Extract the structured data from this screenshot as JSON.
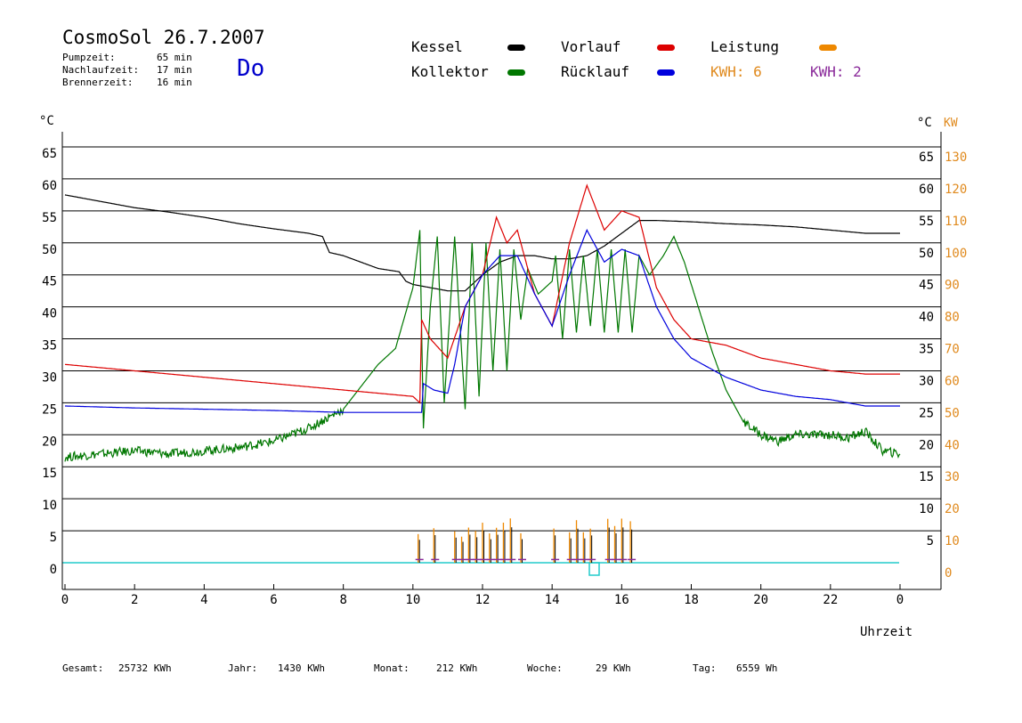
{
  "header": {
    "title": "CosmoSol 26.7.2007",
    "day": "Do",
    "stats": [
      {
        "label": "Pumpzeit:",
        "value": "65 min"
      },
      {
        "label": "Nachlaufzeit:",
        "value": "17 min"
      },
      {
        "label": "Brennerzeit:",
        "value": "16 min"
      }
    ]
  },
  "legend": {
    "kessel": {
      "label": "Kessel",
      "color": "#000000"
    },
    "kollektor": {
      "label": "Kollektor",
      "color": "#007700"
    },
    "vorlauf": {
      "label": "Vorlauf",
      "color": "#dd0000"
    },
    "ruecklauf": {
      "label": "Rücklauf",
      "color": "#0000dd"
    },
    "leistung": {
      "label": "Leistung",
      "color": "#ee8800"
    },
    "kwh1": {
      "label": "KWH: 6",
      "color": "#e08a1e"
    },
    "kwh2": {
      "label": "KWH: 2",
      "color": "#8a2a9a"
    }
  },
  "axes": {
    "left_unit": "°C",
    "right_unit": "°C",
    "right_unit2": "KW",
    "xlabel": "Uhrzeit"
  },
  "footer": {
    "gesamt_label": "Gesamt:",
    "gesamt_value": "25732 KWh",
    "jahr_label": "Jahr:",
    "jahr_value": "1430 KWh",
    "monat_label": "Monat:",
    "monat_value": "212 KWh",
    "woche_label": "Woche:",
    "woche_value": "29 KWh",
    "tag_label": "Tag:",
    "tag_value": "6559 Wh"
  },
  "chart_data": {
    "type": "line",
    "title": "CosmoSol 26.7.2007",
    "xlabel": "Uhrzeit",
    "ylabel": "°C",
    "xlim": [
      0,
      24
    ],
    "ylim": [
      0,
      70
    ],
    "y2lim": [
      0,
      140
    ],
    "x_ticks": [
      "0",
      "2",
      "4",
      "6",
      "8",
      "10",
      "12",
      "14",
      "16",
      "18",
      "20",
      "22",
      "0"
    ],
    "y_ticks_left": [
      "0",
      "5",
      "10",
      "15",
      "20",
      "25",
      "30",
      "35",
      "40",
      "45",
      "50",
      "55",
      "60",
      "65"
    ],
    "y_ticks_right": [
      "5",
      "10",
      "15",
      "20",
      "25",
      "30",
      "35",
      "40",
      "45",
      "50",
      "55",
      "60",
      "65"
    ],
    "y2_ticks": [
      "0",
      "10",
      "20",
      "30",
      "40",
      "50",
      "60",
      "70",
      "80",
      "90",
      "100",
      "110",
      "120",
      "130"
    ],
    "grid": true,
    "series": [
      {
        "name": "Kessel",
        "color": "#000000",
        "points": [
          [
            0,
            57.5
          ],
          [
            1,
            56.5
          ],
          [
            2,
            55.5
          ],
          [
            3,
            54.8
          ],
          [
            4,
            54
          ],
          [
            5,
            53
          ],
          [
            6,
            52.2
          ],
          [
            7,
            51.5
          ],
          [
            7.4,
            51
          ],
          [
            7.6,
            48.5
          ],
          [
            8,
            48
          ],
          [
            9,
            46
          ],
          [
            9.6,
            45.5
          ],
          [
            9.8,
            44
          ],
          [
            10,
            43.5
          ],
          [
            11,
            42.5
          ],
          [
            11.5,
            42.5
          ],
          [
            12,
            45
          ],
          [
            12.5,
            47
          ],
          [
            13,
            48
          ],
          [
            13.5,
            48
          ],
          [
            14,
            47.5
          ],
          [
            14.5,
            47.5
          ],
          [
            15,
            48
          ],
          [
            15.5,
            49.5
          ],
          [
            16,
            51.5
          ],
          [
            16.5,
            53.5
          ],
          [
            17,
            53.5
          ],
          [
            18,
            53.3
          ],
          [
            19,
            53
          ],
          [
            20,
            52.8
          ],
          [
            21,
            52.5
          ],
          [
            22,
            52
          ],
          [
            23,
            51.5
          ],
          [
            24,
            51.5
          ]
        ]
      },
      {
        "name": "Kollektor",
        "color": "#007700",
        "points": [
          [
            0,
            16.5
          ],
          [
            1,
            17
          ],
          [
            2,
            17.5
          ],
          [
            3,
            17
          ],
          [
            4,
            17.5
          ],
          [
            5,
            18
          ],
          [
            6,
            19
          ],
          [
            7,
            21
          ],
          [
            8,
            24
          ],
          [
            9,
            31
          ],
          [
            9.5,
            33.5
          ],
          [
            10,
            43
          ],
          [
            10.2,
            52
          ],
          [
            10.3,
            21
          ],
          [
            10.5,
            40
          ],
          [
            10.7,
            51
          ],
          [
            10.9,
            25
          ],
          [
            11.2,
            51
          ],
          [
            11.5,
            24
          ],
          [
            11.7,
            50
          ],
          [
            11.9,
            26
          ],
          [
            12.1,
            50
          ],
          [
            12.3,
            30
          ],
          [
            12.5,
            49
          ],
          [
            12.7,
            30
          ],
          [
            12.9,
            49
          ],
          [
            13.1,
            38
          ],
          [
            13.3,
            46
          ],
          [
            13.6,
            42
          ],
          [
            14,
            44
          ],
          [
            14.1,
            48
          ],
          [
            14.3,
            35
          ],
          [
            14.5,
            49
          ],
          [
            14.7,
            36
          ],
          [
            14.9,
            48
          ],
          [
            15.1,
            37
          ],
          [
            15.3,
            49
          ],
          [
            15.5,
            36
          ],
          [
            15.7,
            49
          ],
          [
            15.9,
            36
          ],
          [
            16.1,
            49
          ],
          [
            16.3,
            36
          ],
          [
            16.5,
            48
          ],
          [
            16.8,
            45
          ],
          [
            17.2,
            48
          ],
          [
            17.5,
            51
          ],
          [
            17.8,
            47
          ],
          [
            18.2,
            40
          ],
          [
            18.6,
            33
          ],
          [
            19,
            27
          ],
          [
            19.5,
            22
          ],
          [
            20,
            20
          ],
          [
            20.5,
            19
          ],
          [
            21,
            20
          ],
          [
            22,
            20
          ],
          [
            22.5,
            19.5
          ],
          [
            23,
            20.5
          ],
          [
            23.5,
            17.5
          ],
          [
            24,
            17
          ]
        ]
      },
      {
        "name": "Vorlauf",
        "color": "#dd0000",
        "points": [
          [
            0,
            31
          ],
          [
            2,
            30
          ],
          [
            4,
            29
          ],
          [
            6,
            28
          ],
          [
            8,
            27
          ],
          [
            9,
            26.5
          ],
          [
            10,
            26
          ],
          [
            10.2,
            25
          ],
          [
            10.25,
            38
          ],
          [
            10.5,
            35
          ],
          [
            11,
            32
          ],
          [
            11.5,
            40
          ],
          [
            12,
            45
          ],
          [
            12.4,
            54
          ],
          [
            12.7,
            50
          ],
          [
            13,
            52
          ],
          [
            13.5,
            42
          ],
          [
            14,
            37
          ],
          [
            14.5,
            50
          ],
          [
            15,
            59
          ],
          [
            15.5,
            52
          ],
          [
            16,
            55
          ],
          [
            16.5,
            54
          ],
          [
            17,
            43
          ],
          [
            17.5,
            38
          ],
          [
            18,
            35
          ],
          [
            19,
            34
          ],
          [
            20,
            32
          ],
          [
            21,
            31
          ],
          [
            22,
            30
          ],
          [
            23,
            29.5
          ],
          [
            24,
            29.5
          ]
        ]
      },
      {
        "name": "Rücklauf",
        "color": "#0000dd",
        "points": [
          [
            0,
            24.5
          ],
          [
            2,
            24.2
          ],
          [
            4,
            24
          ],
          [
            6,
            23.8
          ],
          [
            8,
            23.5
          ],
          [
            9,
            23.5
          ],
          [
            10,
            23.5
          ],
          [
            10.25,
            23.5
          ],
          [
            10.3,
            28
          ],
          [
            10.6,
            27
          ],
          [
            11,
            26.5
          ],
          [
            11.2,
            31
          ],
          [
            11.5,
            40
          ],
          [
            12,
            45
          ],
          [
            12.5,
            48
          ],
          [
            13,
            48
          ],
          [
            13.5,
            42
          ],
          [
            14,
            37
          ],
          [
            14.5,
            45
          ],
          [
            15,
            52
          ],
          [
            15.5,
            47
          ],
          [
            16,
            49
          ],
          [
            16.5,
            48
          ],
          [
            17,
            40
          ],
          [
            17.5,
            35
          ],
          [
            18,
            32
          ],
          [
            19,
            29
          ],
          [
            20,
            27
          ],
          [
            21,
            26
          ],
          [
            22,
            25.5
          ],
          [
            23,
            24.5
          ],
          [
            24,
            24.5
          ]
        ]
      }
    ]
  }
}
